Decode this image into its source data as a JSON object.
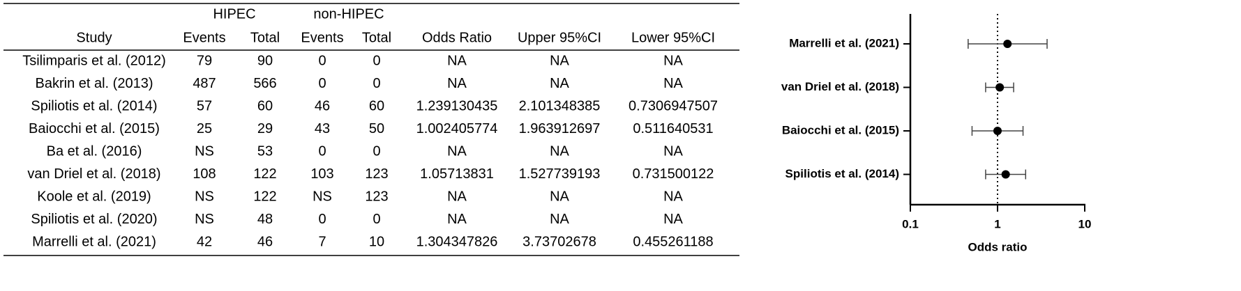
{
  "table": {
    "group_headers": [
      "HIPEC",
      "non-HIPEC"
    ],
    "headers": [
      "Study",
      "Events",
      "Total",
      "Events",
      "Total",
      "Odds Ratio",
      "Upper 95%CI",
      "Lower 95%CI"
    ],
    "rows": [
      [
        "Tsilimparis et al. (2012)",
        "79",
        "90",
        "0",
        "0",
        "NA",
        "NA",
        "NA"
      ],
      [
        "Bakrin et al. (2013)",
        "487",
        "566",
        "0",
        "0",
        "NA",
        "NA",
        "NA"
      ],
      [
        "Spiliotis et al. (2014)",
        "57",
        "60",
        "46",
        "60",
        "1.239130435",
        "2.101348385",
        "0.7306947507"
      ],
      [
        "Baiocchi et al. (2015)",
        "25",
        "29",
        "43",
        "50",
        "1.002405774",
        "1.963912697",
        "0.511640531"
      ],
      [
        "Ba et al. (2016)",
        "NS",
        "53",
        "0",
        "0",
        "NA",
        "NA",
        "NA"
      ],
      [
        "van Driel et al. (2018)",
        "108",
        "122",
        "103",
        "123",
        "1.05713831",
        "1.527739193",
        "0.731500122"
      ],
      [
        "Koole et al. (2019)",
        "NS",
        "122",
        "NS",
        "123",
        "NA",
        "NA",
        "NA"
      ],
      [
        "Spiliotis et al. (2020)",
        "NS",
        "48",
        "0",
        "0",
        "NA",
        "NA",
        "NA"
      ],
      [
        "Marrelli et al. (2021)",
        "42",
        "46",
        "7",
        "10",
        "1.304347826",
        "3.73702678",
        "0.455261188"
      ]
    ]
  },
  "chart_data": {
    "type": "forest",
    "x_label": "Odds ratio",
    "categories": [
      "Marrelli et al. (2021)",
      "van Driel et al. (2018)",
      "Baiocchi et al. (2015)",
      "Spiliotis et al. (2014)"
    ],
    "values": [
      1.3,
      1.06,
      1.0,
      1.24
    ],
    "lower": [
      0.46,
      0.73,
      0.51,
      0.73
    ],
    "upper": [
      3.7,
      1.53,
      1.96,
      2.1
    ],
    "color": "#000000",
    "xlim": [
      0.1,
      10
    ],
    "xticks": [
      0.1,
      1,
      10
    ],
    "log_x": true,
    "reference_line": 1
  }
}
